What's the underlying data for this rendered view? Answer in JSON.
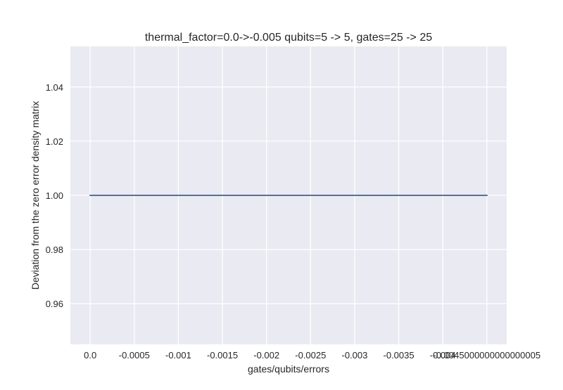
{
  "chart_data": {
    "type": "line",
    "title": "thermal_factor=0.0->-0.005 qubits=5 -> 5, gates=25 -> 25",
    "xlabel": "gates/qubits/errors",
    "ylabel": "Deviation from the zero error density matrix",
    "x_ticks": [
      {
        "value": 0.0,
        "label": "0.0"
      },
      {
        "value": -0.0005,
        "label": "-0.0005"
      },
      {
        "value": -0.001,
        "label": "-0.001"
      },
      {
        "value": -0.0015,
        "label": "-0.0015"
      },
      {
        "value": -0.002,
        "label": "-0.002"
      },
      {
        "value": -0.0025,
        "label": "-0.0025"
      },
      {
        "value": -0.003,
        "label": "-0.003"
      },
      {
        "value": -0.0035,
        "label": "-0.0035"
      },
      {
        "value": -0.004,
        "label": "-0.004"
      },
      {
        "value": -0.0045000000000000005,
        "label": "-0.0045000000000000005"
      }
    ],
    "y_ticks": [
      {
        "value": 0.96,
        "label": "0.96"
      },
      {
        "value": 0.98,
        "label": "0.98"
      },
      {
        "value": 1.0,
        "label": "1.00"
      },
      {
        "value": 1.02,
        "label": "1.02"
      },
      {
        "value": 1.04,
        "label": "1.04"
      }
    ],
    "xlim": [
      0.00022499999999999997,
      -0.004725
    ],
    "ylim": [
      0.945,
      1.055
    ],
    "grid": true,
    "series": [
      {
        "color": "#4c72b0",
        "x": [
          0.0,
          -0.0005,
          -0.001,
          -0.0015,
          -0.002,
          -0.0025,
          -0.003,
          -0.0035,
          -0.004,
          -0.0045000000000000005
        ],
        "y": [
          1.0,
          1.0,
          1.0,
          1.0,
          1.0,
          1.0,
          1.0,
          1.0,
          1.0,
          1.0
        ]
      }
    ],
    "colors": {
      "plot_background": "#eaeaf2",
      "grid": "#ffffff",
      "text": "#262626"
    }
  }
}
